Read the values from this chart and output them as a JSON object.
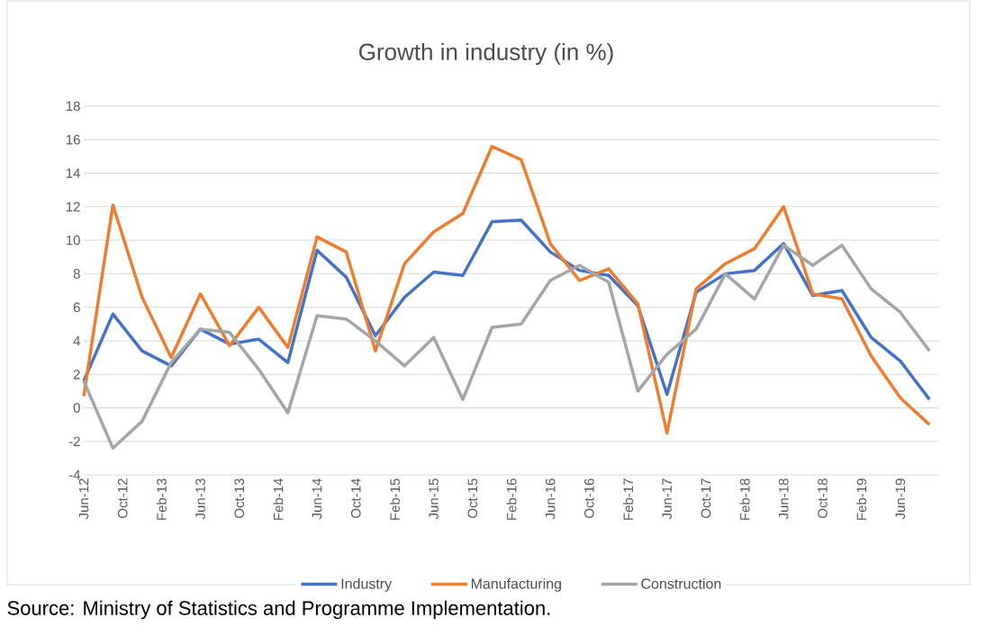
{
  "chart_data": {
    "type": "line",
    "title": "Growth in industry (in %)",
    "x": [
      "2012-06",
      "2012-09",
      "2012-12",
      "2013-03",
      "2013-06",
      "2013-09",
      "2013-12",
      "2014-03",
      "2014-06",
      "2014-09",
      "2014-12",
      "2015-03",
      "2015-06",
      "2015-09",
      "2015-12",
      "2016-03",
      "2016-06",
      "2016-09",
      "2016-12",
      "2017-03",
      "2017-06",
      "2017-09",
      "2017-12",
      "2018-03",
      "2018-06",
      "2018-09",
      "2018-12",
      "2019-03",
      "2019-06",
      "2019-09"
    ],
    "series": [
      {
        "name": "Industry",
        "color": "#4472c4",
        "values": [
          1.6,
          5.6,
          3.4,
          2.5,
          4.7,
          3.8,
          4.1,
          2.7,
          9.4,
          7.8,
          4.3,
          6.6,
          8.1,
          7.9,
          11.1,
          11.2,
          9.3,
          8.2,
          7.9,
          6.1,
          0.8,
          6.9,
          8.0,
          8.2,
          9.8,
          6.7,
          7.0,
          4.2,
          2.8,
          0.5
        ]
      },
      {
        "name": "Manufacturing",
        "color": "#ed7d31",
        "values": [
          0.7,
          12.1,
          6.6,
          3.0,
          6.8,
          3.7,
          6.0,
          3.6,
          10.2,
          9.3,
          3.4,
          8.6,
          10.5,
          11.6,
          15.6,
          14.8,
          9.8,
          7.6,
          8.3,
          6.2,
          -1.5,
          7.1,
          8.6,
          9.5,
          12.0,
          6.8,
          6.5,
          3.1,
          0.6,
          -1.0
        ]
      },
      {
        "name": "Construction",
        "color": "#a5a5a5",
        "values": [
          1.6,
          -2.4,
          -0.8,
          2.7,
          4.7,
          4.5,
          2.3,
          -0.3,
          5.5,
          5.3,
          4.0,
          2.5,
          4.2,
          0.5,
          4.8,
          5.0,
          7.6,
          8.5,
          7.5,
          1.0,
          3.2,
          4.7,
          8.0,
          6.5,
          9.7,
          8.5,
          9.7,
          7.1,
          5.7,
          3.4
        ]
      }
    ],
    "xlim": [
      "2012-06",
      "2019-10"
    ],
    "xticks": [
      {
        "value": "2012-06",
        "label": "Jun-12"
      },
      {
        "value": "2012-10",
        "label": "Oct-12"
      },
      {
        "value": "2013-02",
        "label": "Feb-13"
      },
      {
        "value": "2013-06",
        "label": "Jun-13"
      },
      {
        "value": "2013-10",
        "label": "Oct-13"
      },
      {
        "value": "2014-02",
        "label": "Feb-14"
      },
      {
        "value": "2014-06",
        "label": "Jun-14"
      },
      {
        "value": "2014-10",
        "label": "Oct-14"
      },
      {
        "value": "2015-02",
        "label": "Feb-15"
      },
      {
        "value": "2015-06",
        "label": "Jun-15"
      },
      {
        "value": "2015-10",
        "label": "Oct-15"
      },
      {
        "value": "2016-02",
        "label": "Feb-16"
      },
      {
        "value": "2016-06",
        "label": "Jun-16"
      },
      {
        "value": "2016-10",
        "label": "Oct-16"
      },
      {
        "value": "2017-02",
        "label": "Feb-17"
      },
      {
        "value": "2017-06",
        "label": "Jun-17"
      },
      {
        "value": "2017-10",
        "label": "Oct-17"
      },
      {
        "value": "2018-02",
        "label": "Feb-18"
      },
      {
        "value": "2018-06",
        "label": "Jun-18"
      },
      {
        "value": "2018-10",
        "label": "Oct-18"
      },
      {
        "value": "2019-02",
        "label": "Feb-19"
      },
      {
        "value": "2019-06",
        "label": "Jun-19"
      }
    ],
    "ylim": [
      -4,
      18
    ],
    "yticks": [
      -4,
      -2,
      0,
      2,
      4,
      6,
      8,
      10,
      12,
      14,
      16,
      18
    ],
    "grid": "y",
    "legend": "bottom",
    "marker": "none",
    "line_style": "solid",
    "annotations": [
      "Source: Ministry of Statistics and Programme Implementation."
    ]
  }
}
